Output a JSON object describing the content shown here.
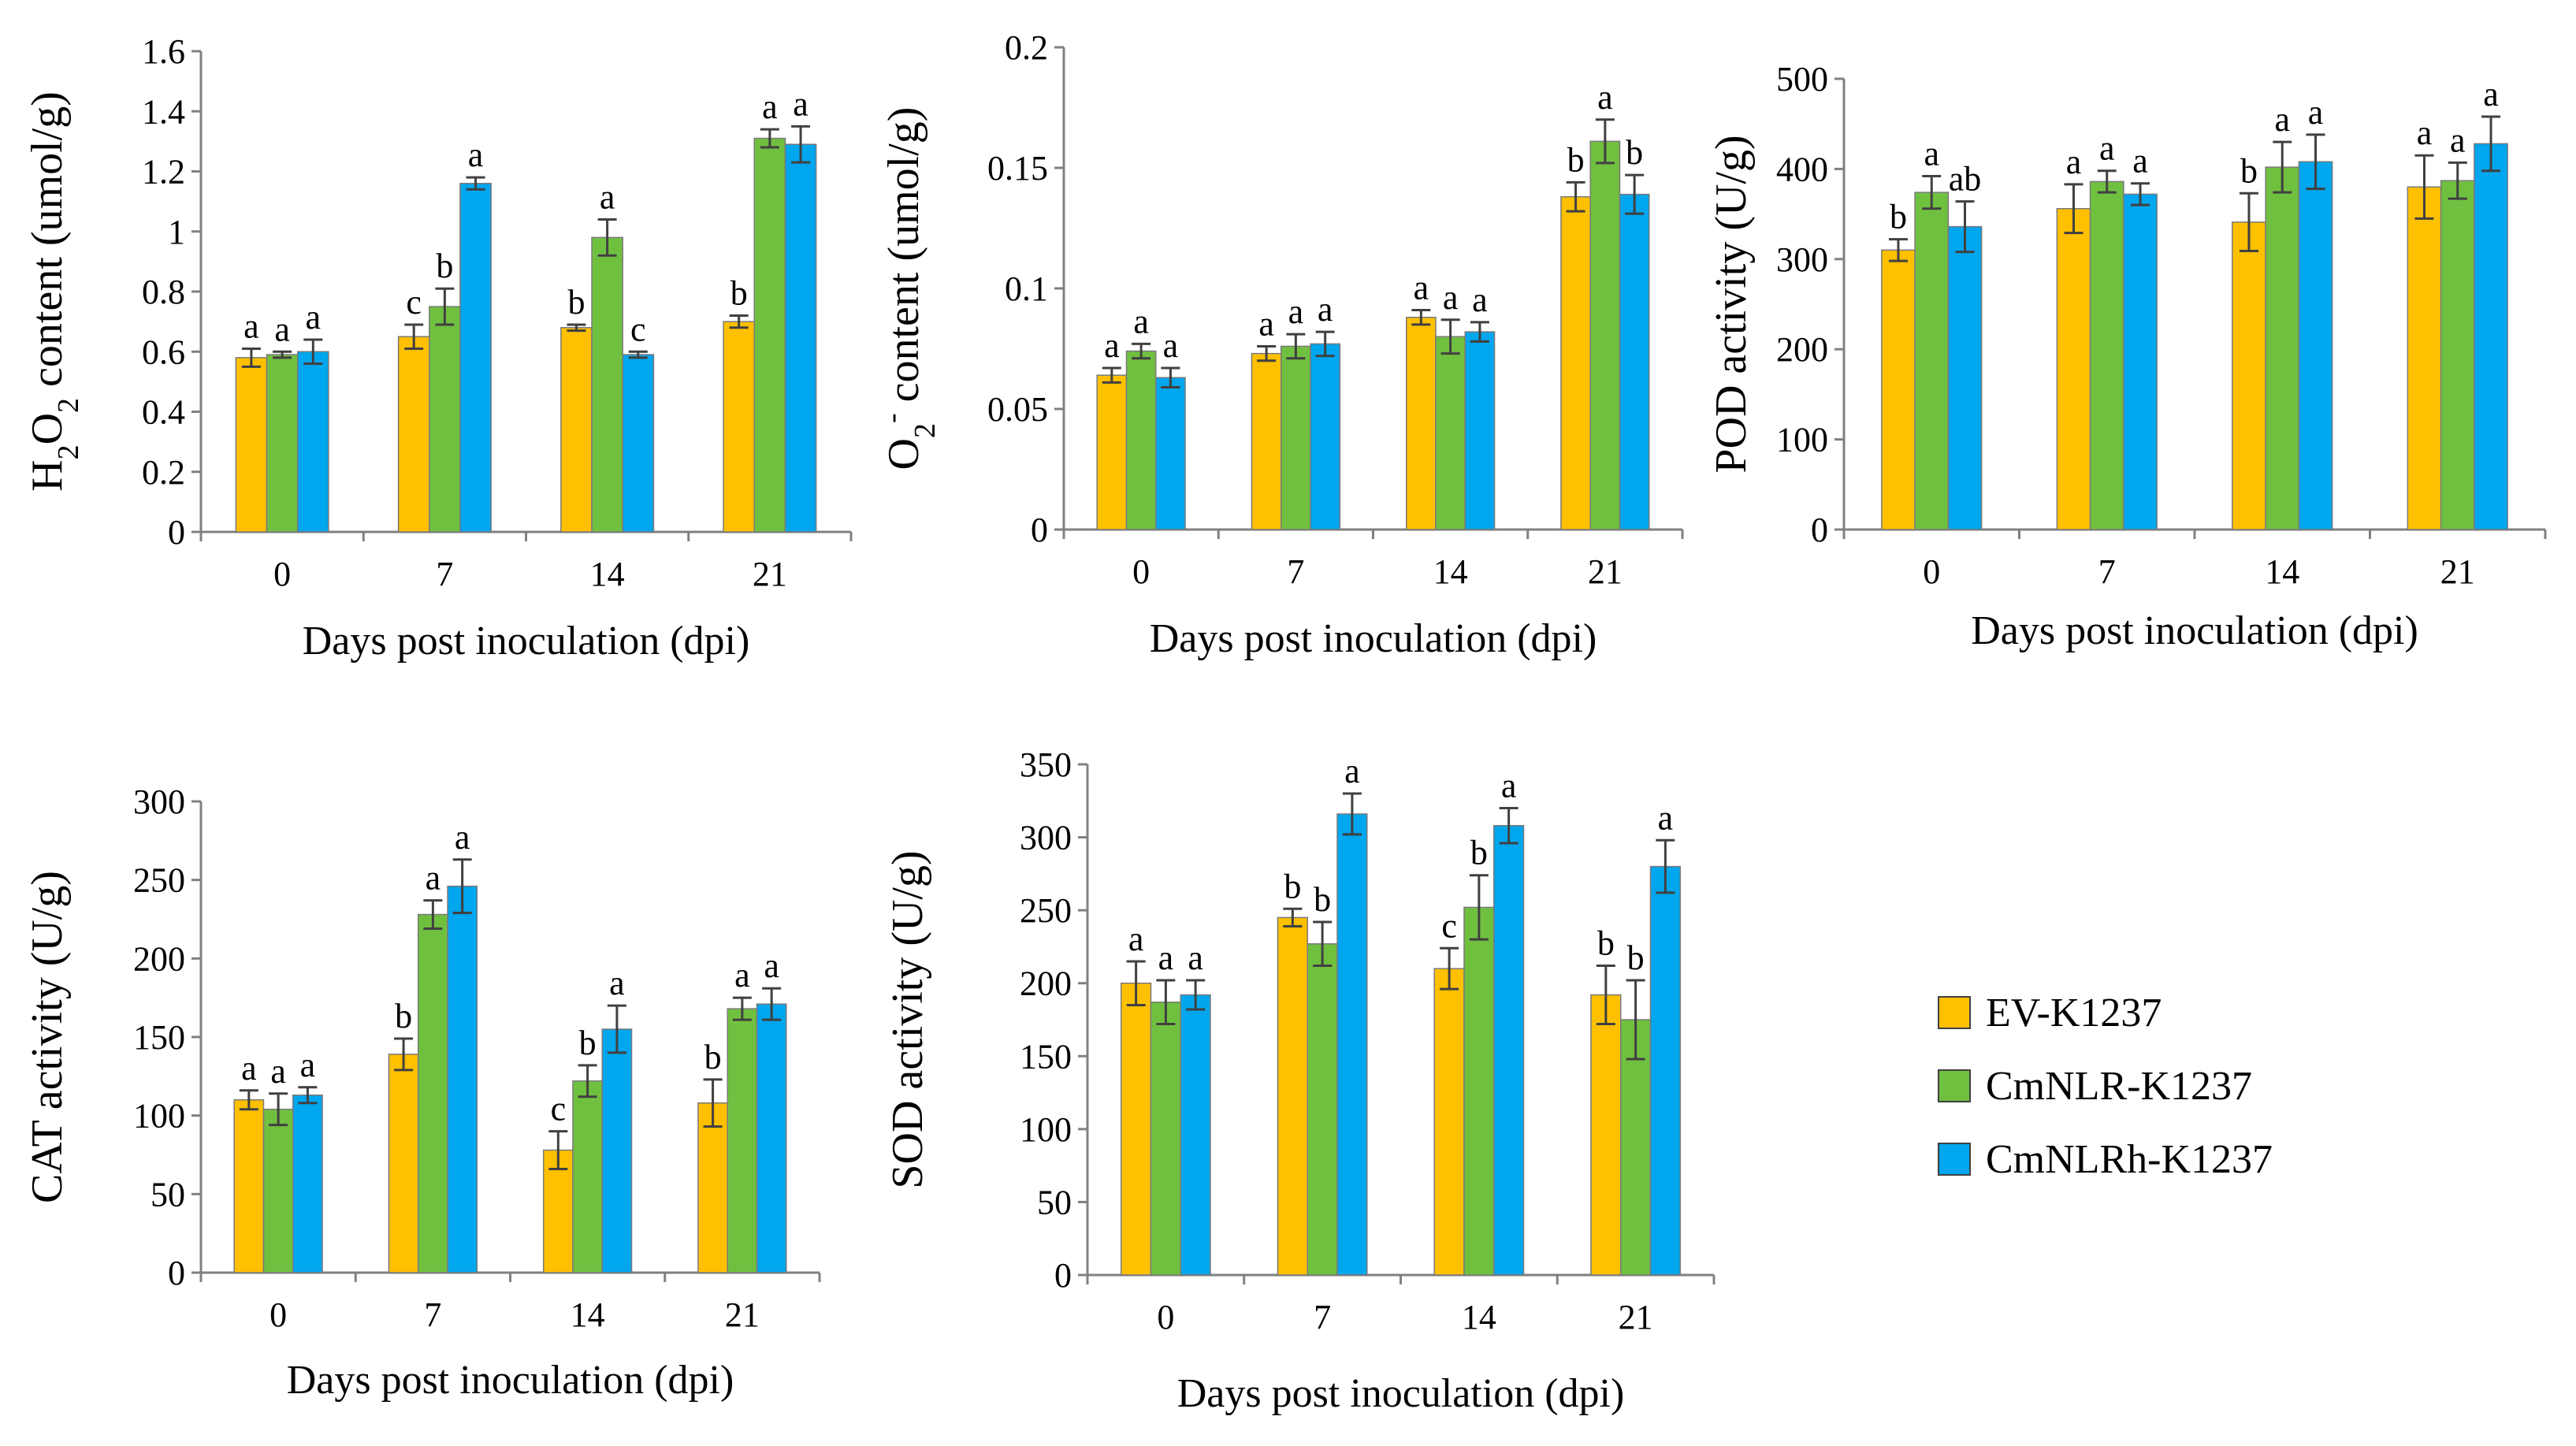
{
  "colors": {
    "EV": "#FFC000",
    "CmNLR": "#70C040",
    "CmNLRh": "#00A6EE",
    "axis": "#808080",
    "err": "#404040"
  },
  "legend": {
    "items": [
      {
        "label": "EV-K1237",
        "color": "#FFC000"
      },
      {
        "label": "CmNLR-K1237",
        "color": "#70C040"
      },
      {
        "label": "CmNLRh-K1237",
        "color": "#00A6EE"
      }
    ]
  },
  "chart_data": [
    {
      "type": "bar",
      "id": "h2o2",
      "ylabel_parts": [
        "H",
        "2",
        "O",
        "2",
        " content (umol/g)"
      ],
      "ylabel": "H2O2 content (umol/g)",
      "xlabel": "Days post inoculation (dpi)",
      "categories": [
        "0",
        "7",
        "14",
        "21"
      ],
      "ylim": [
        0,
        1.6
      ],
      "yticks": [
        "0",
        "0.2",
        "0.4",
        "0.6",
        "0.8",
        "1",
        "1.2",
        "1.4",
        "1.6"
      ],
      "series": [
        {
          "name": "EV-K1237",
          "values": [
            0.58,
            0.65,
            0.68,
            0.7
          ],
          "errors": [
            0.03,
            0.04,
            0.01,
            0.02
          ],
          "letters": [
            "a",
            "c",
            "b",
            "b"
          ]
        },
        {
          "name": "CmNLR-K1237",
          "values": [
            0.59,
            0.75,
            0.98,
            1.31
          ],
          "errors": [
            0.01,
            0.06,
            0.06,
            0.03
          ],
          "letters": [
            "a",
            "b",
            "a",
            "a"
          ]
        },
        {
          "name": "CmNLRh-K1237",
          "values": [
            0.6,
            1.16,
            0.59,
            1.29
          ],
          "errors": [
            0.04,
            0.02,
            0.01,
            0.06
          ],
          "letters": [
            "a",
            "a",
            "c",
            "a"
          ]
        }
      ]
    },
    {
      "type": "bar",
      "id": "o2",
      "ylabel_parts": [
        "O",
        "2",
        "-",
        " content (umol/g)"
      ],
      "ylabel": "O2- content (umol/g)",
      "xlabel": "Days post inoculation (dpi)",
      "categories": [
        "0",
        "7",
        "14",
        "21"
      ],
      "ylim": [
        0,
        0.2
      ],
      "yticks": [
        "0",
        "0.05",
        "0.1",
        "0.15",
        "0.2"
      ],
      "series": [
        {
          "name": "EV-K1237",
          "values": [
            0.064,
            0.073,
            0.088,
            0.138
          ],
          "errors": [
            0.003,
            0.003,
            0.003,
            0.006
          ],
          "letters": [
            "a",
            "a",
            "a",
            "b"
          ]
        },
        {
          "name": "CmNLR-K1237",
          "values": [
            0.074,
            0.076,
            0.08,
            0.161
          ],
          "errors": [
            0.003,
            0.005,
            0.007,
            0.009
          ],
          "letters": [
            "a",
            "a",
            "a",
            "a"
          ]
        },
        {
          "name": "CmNLRh-K1237",
          "values": [
            0.063,
            0.077,
            0.082,
            0.139
          ],
          "errors": [
            0.004,
            0.005,
            0.004,
            0.008
          ],
          "letters": [
            "a",
            "a",
            "a",
            "b"
          ]
        }
      ]
    },
    {
      "type": "bar",
      "id": "pod",
      "ylabel_parts": [
        "POD activity (U/g)"
      ],
      "ylabel": "POD activity (U/g)",
      "xlabel": "Days post inoculation (dpi)",
      "categories": [
        "0",
        "7",
        "14",
        "21"
      ],
      "ylim": [
        0,
        500
      ],
      "yticks": [
        "0",
        "100",
        "200",
        "300",
        "400",
        "500"
      ],
      "series": [
        {
          "name": "EV-K1237",
          "values": [
            310,
            356,
            341,
            380
          ],
          "errors": [
            12,
            27,
            32,
            35
          ],
          "letters": [
            "b",
            "a",
            "b",
            "a"
          ]
        },
        {
          "name": "CmNLR-K1237",
          "values": [
            374,
            386,
            402,
            387
          ],
          "errors": [
            18,
            12,
            28,
            20
          ],
          "letters": [
            "a",
            "a",
            "a",
            "a"
          ]
        },
        {
          "name": "CmNLRh-K1237",
          "values": [
            336,
            372,
            408,
            428
          ],
          "errors": [
            28,
            12,
            30,
            30
          ],
          "letters": [
            "ab",
            "a",
            "a",
            "a"
          ]
        }
      ]
    },
    {
      "type": "bar",
      "id": "cat",
      "ylabel_parts": [
        "CAT activity (U/g)"
      ],
      "ylabel": "CAT activity (U/g)",
      "xlabel": "Days post inoculation (dpi)",
      "categories": [
        "0",
        "7",
        "14",
        "21"
      ],
      "ylim": [
        0,
        300
      ],
      "yticks": [
        "0",
        "50",
        "100",
        "150",
        "200",
        "250",
        "300"
      ],
      "series": [
        {
          "name": "EV-K1237",
          "values": [
            110,
            139,
            78,
            108
          ],
          "errors": [
            6,
            10,
            12,
            15
          ],
          "letters": [
            "a",
            "b",
            "c",
            "b"
          ]
        },
        {
          "name": "CmNLR-K1237",
          "values": [
            104,
            228,
            122,
            168
          ],
          "errors": [
            10,
            9,
            10,
            7
          ],
          "letters": [
            "a",
            "a",
            "b",
            "a"
          ]
        },
        {
          "name": "CmNLRh-K1237",
          "values": [
            113,
            246,
            155,
            171
          ],
          "errors": [
            5,
            17,
            15,
            10
          ],
          "letters": [
            "a",
            "a",
            "a",
            "a"
          ]
        }
      ]
    },
    {
      "type": "bar",
      "id": "sod",
      "ylabel_parts": [
        "SOD activity (U/g)"
      ],
      "ylabel": "SOD activity (U/g)",
      "xlabel": "Days post inoculation (dpi)",
      "categories": [
        "0",
        "7",
        "14",
        "21"
      ],
      "ylim": [
        0,
        350
      ],
      "yticks": [
        "0",
        "50",
        "100",
        "150",
        "200",
        "250",
        "300",
        "350"
      ],
      "series": [
        {
          "name": "EV-K1237",
          "values": [
            200,
            245,
            210,
            192
          ],
          "errors": [
            15,
            6,
            14,
            20
          ],
          "letters": [
            "a",
            "b",
            "c",
            "b"
          ]
        },
        {
          "name": "CmNLR-K1237",
          "values": [
            187,
            227,
            252,
            175
          ],
          "errors": [
            15,
            15,
            22,
            27
          ],
          "letters": [
            "a",
            "b",
            "b",
            "b"
          ]
        },
        {
          "name": "CmNLRh-K1237",
          "values": [
            192,
            316,
            308,
            280
          ],
          "errors": [
            10,
            14,
            12,
            18
          ],
          "letters": [
            "a",
            "a",
            "a",
            "a"
          ]
        }
      ]
    }
  ]
}
